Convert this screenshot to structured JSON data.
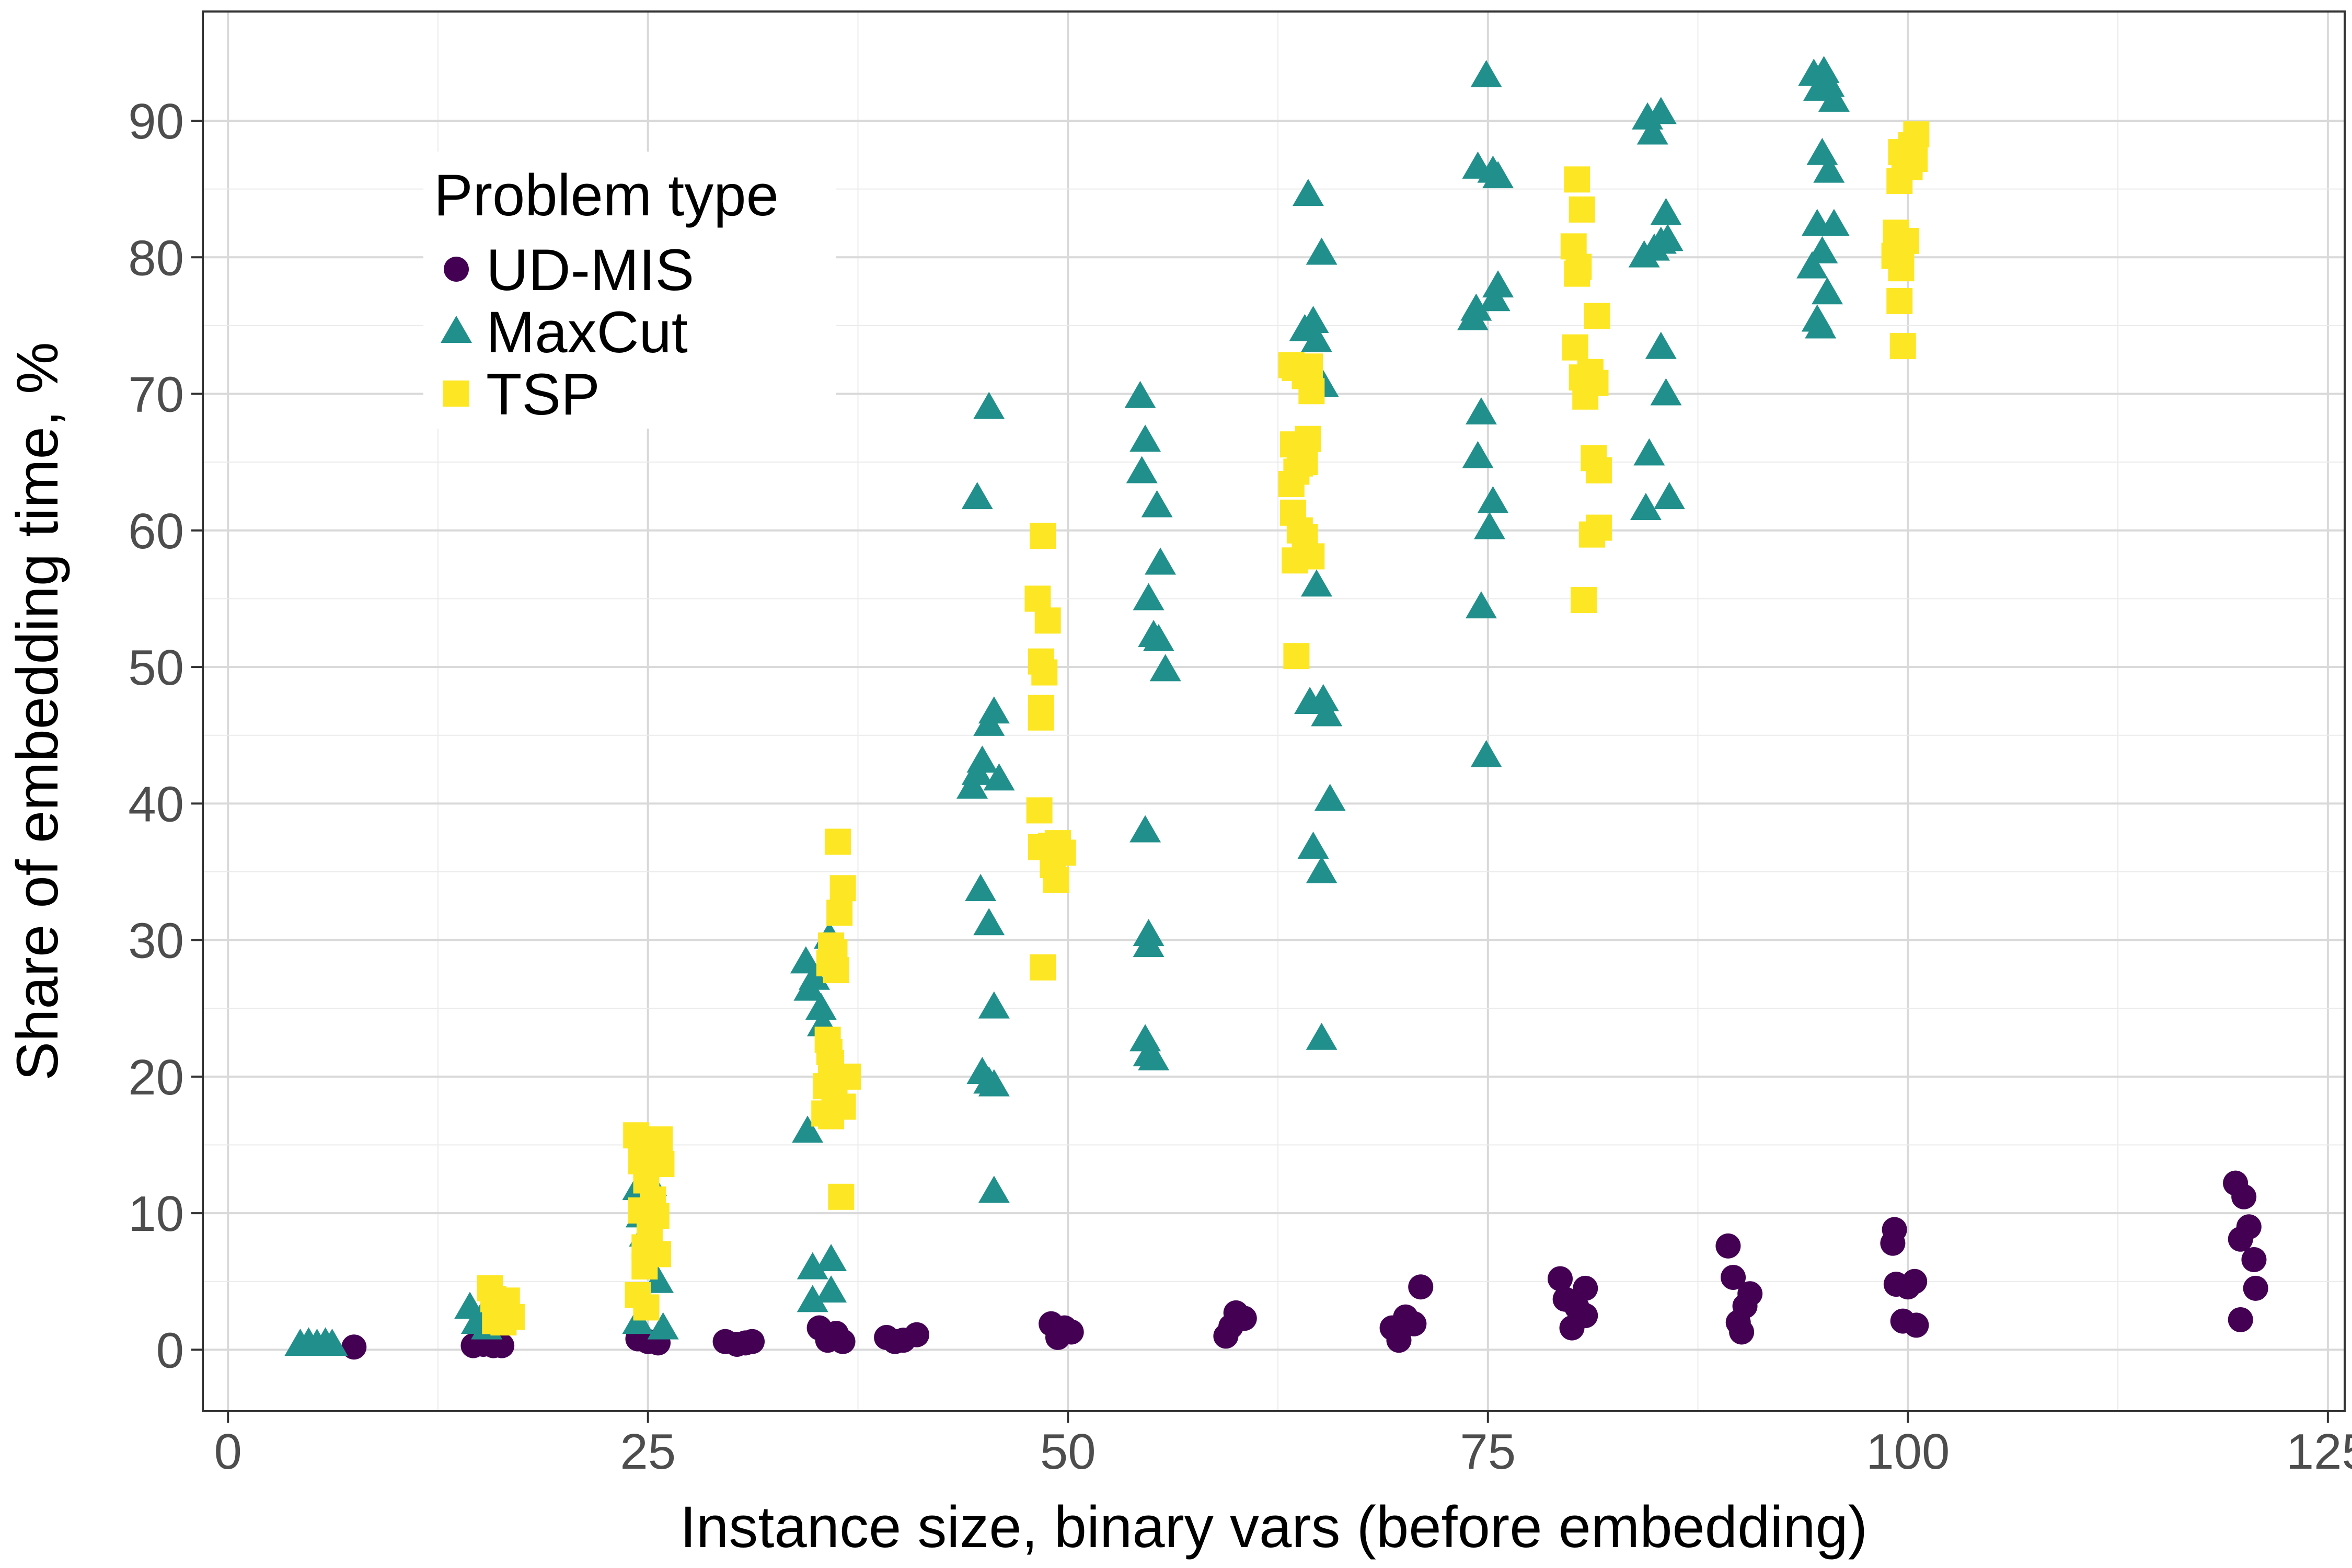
{
  "chart_data": {
    "type": "scatter",
    "xlabel": "Instance size, binary vars (before embedding)",
    "ylabel": "Share of embedding time, %",
    "xlim": [
      -1.5,
      126
    ],
    "ylim": [
      -4.5,
      98
    ],
    "x_ticks": [
      "0",
      "25",
      "50",
      "75",
      "100",
      "125"
    ],
    "x_tick_values": [
      0,
      25,
      50,
      75,
      100,
      125
    ],
    "y_ticks": [
      "0",
      "10",
      "20",
      "30",
      "40",
      "50",
      "60",
      "70",
      "80",
      "90"
    ],
    "y_tick_values": [
      0,
      10,
      20,
      30,
      40,
      50,
      60,
      70,
      80,
      90
    ],
    "grid": true,
    "legend": {
      "title": "Problem type",
      "placement": "top-left inside"
    },
    "series": [
      {
        "name": "UD-MIS",
        "shape": "circle",
        "color": "#440154",
        "points": [
          [
            7.5,
            0.2
          ],
          [
            14.6,
            0.3
          ],
          [
            15.2,
            0.4
          ],
          [
            15.8,
            0.3
          ],
          [
            16.3,
            0.3
          ],
          [
            24.4,
            0.8
          ],
          [
            25.0,
            0.6
          ],
          [
            25.6,
            0.5
          ],
          [
            29.6,
            0.6
          ],
          [
            30.3,
            0.4
          ],
          [
            30.8,
            0.5
          ],
          [
            31.2,
            0.6
          ],
          [
            35.2,
            1.6
          ],
          [
            35.7,
            0.7
          ],
          [
            36.2,
            1.2
          ],
          [
            36.6,
            0.6
          ],
          [
            39.2,
            0.9
          ],
          [
            39.7,
            0.6
          ],
          [
            40.2,
            0.7
          ],
          [
            41.0,
            1.1
          ],
          [
            49.0,
            1.9
          ],
          [
            49.4,
            0.9
          ],
          [
            49.8,
            1.6
          ],
          [
            50.2,
            1.3
          ],
          [
            59.4,
            1.0
          ],
          [
            59.7,
            1.7
          ],
          [
            60.0,
            2.7
          ],
          [
            60.5,
            2.3
          ],
          [
            69.3,
            1.6
          ],
          [
            69.7,
            0.7
          ],
          [
            70.1,
            2.4
          ],
          [
            70.6,
            1.9
          ],
          [
            71.0,
            4.6
          ],
          [
            79.3,
            5.2
          ],
          [
            79.6,
            3.7
          ],
          [
            80.0,
            1.6
          ],
          [
            80.3,
            3.1
          ],
          [
            80.8,
            4.5
          ],
          [
            80.8,
            2.5
          ],
          [
            89.3,
            7.6
          ],
          [
            89.6,
            5.3
          ],
          [
            89.9,
            2.0
          ],
          [
            90.3,
            3.2
          ],
          [
            90.6,
            4.1
          ],
          [
            90.1,
            1.3
          ],
          [
            99.2,
            8.8
          ],
          [
            99.3,
            4.8
          ],
          [
            99.7,
            2.1
          ],
          [
            100.0,
            4.6
          ],
          [
            100.4,
            5.0
          ],
          [
            99.1,
            7.8
          ],
          [
            100.5,
            1.8
          ],
          [
            119.5,
            12.2
          ],
          [
            119.8,
            8.1
          ],
          [
            120.0,
            11.2
          ],
          [
            120.3,
            9.0
          ],
          [
            120.6,
            6.6
          ],
          [
            120.7,
            4.5
          ],
          [
            119.8,
            2.2
          ]
        ]
      },
      {
        "name": "MaxCut",
        "shape": "triangle",
        "color": "#21908C",
        "points": [
          [
            4.3,
            0.4
          ],
          [
            4.8,
            0.5
          ],
          [
            5.3,
            0.4
          ],
          [
            5.8,
            0.5
          ],
          [
            6.2,
            0.4
          ],
          [
            14.4,
            3.1
          ],
          [
            14.8,
            2.0
          ],
          [
            15.1,
            2.4
          ],
          [
            15.4,
            1.6
          ],
          [
            24.4,
            11.8
          ],
          [
            24.6,
            9.8
          ],
          [
            24.8,
            8.4
          ],
          [
            25.2,
            12.1
          ],
          [
            25.6,
            5.0
          ],
          [
            25.9,
            1.6
          ],
          [
            24.4,
            2.0
          ],
          [
            34.4,
            28.4
          ],
          [
            34.6,
            26.4
          ],
          [
            34.9,
            27.2
          ],
          [
            35.3,
            25.0
          ],
          [
            35.4,
            23.8
          ],
          [
            35.8,
            30.2
          ],
          [
            34.5,
            16.0
          ],
          [
            34.8,
            6.0
          ],
          [
            35.9,
            6.6
          ],
          [
            35.9,
            4.3
          ],
          [
            34.8,
            3.6
          ],
          [
            44.3,
            41.2
          ],
          [
            44.6,
            42.2
          ],
          [
            44.9,
            43.1
          ],
          [
            45.3,
            45.8
          ],
          [
            45.6,
            46.7
          ],
          [
            45.9,
            41.8
          ],
          [
            44.8,
            33.7
          ],
          [
            45.3,
            31.2
          ],
          [
            45.6,
            25.1
          ],
          [
            44.9,
            20.3
          ],
          [
            45.3,
            19.6
          ],
          [
            45.6,
            19.4
          ],
          [
            45.6,
            11.6
          ],
          [
            44.6,
            62.4
          ],
          [
            45.3,
            69.0
          ],
          [
            54.3,
            69.8
          ],
          [
            54.6,
            66.6
          ],
          [
            54.4,
            64.3
          ],
          [
            55.3,
            61.8
          ],
          [
            55.5,
            57.6
          ],
          [
            54.8,
            55.0
          ],
          [
            55.1,
            52.3
          ],
          [
            55.4,
            52.0
          ],
          [
            55.8,
            49.8
          ],
          [
            54.6,
            38.0
          ],
          [
            54.8,
            30.4
          ],
          [
            54.8,
            29.6
          ],
          [
            54.6,
            22.7
          ],
          [
            54.8,
            21.6
          ],
          [
            55.1,
            21.3
          ],
          [
            64.3,
            84.6
          ],
          [
            64.6,
            75.3
          ],
          [
            65.1,
            80.3
          ],
          [
            64.8,
            73.9
          ],
          [
            65.2,
            70.6
          ],
          [
            64.8,
            56.0
          ],
          [
            64.4,
            47.4
          ],
          [
            65.2,
            47.6
          ],
          [
            65.4,
            46.5
          ],
          [
            65.6,
            40.3
          ],
          [
            64.6,
            36.8
          ],
          [
            65.1,
            35.0
          ],
          [
            65.1,
            22.8
          ],
          [
            64.1,
            74.7
          ],
          [
            74.4,
            86.6
          ],
          [
            74.9,
            93.3
          ],
          [
            75.3,
            86.3
          ],
          [
            75.6,
            85.9
          ],
          [
            74.3,
            76.2
          ],
          [
            74.1,
            75.5
          ],
          [
            75.6,
            77.9
          ],
          [
            75.4,
            76.9
          ],
          [
            74.6,
            68.6
          ],
          [
            74.4,
            65.4
          ],
          [
            75.3,
            62.1
          ],
          [
            75.1,
            60.2
          ],
          [
            74.6,
            54.4
          ],
          [
            74.9,
            43.5
          ],
          [
            84.5,
            90.2
          ],
          [
            84.8,
            89.1
          ],
          [
            85.3,
            90.6
          ],
          [
            84.9,
            80.6
          ],
          [
            85.3,
            81.1
          ],
          [
            85.6,
            83.2
          ],
          [
            85.7,
            81.3
          ],
          [
            84.3,
            80.1
          ],
          [
            85.3,
            73.4
          ],
          [
            85.6,
            70.0
          ],
          [
            84.6,
            65.6
          ],
          [
            85.8,
            62.4
          ],
          [
            84.4,
            61.6
          ],
          [
            94.4,
            93.4
          ],
          [
            94.7,
            92.3
          ],
          [
            95.0,
            93.6
          ],
          [
            95.3,
            92.6
          ],
          [
            95.6,
            91.5
          ],
          [
            94.9,
            87.6
          ],
          [
            95.3,
            86.3
          ],
          [
            94.6,
            82.4
          ],
          [
            95.6,
            82.4
          ],
          [
            94.9,
            80.4
          ],
          [
            94.3,
            79.3
          ],
          [
            95.2,
            77.4
          ],
          [
            94.6,
            75.4
          ],
          [
            94.8,
            74.9
          ]
        ]
      },
      {
        "name": "TSP",
        "shape": "square",
        "color": "#FDE725",
        "points": [
          [
            15.6,
            4.5
          ],
          [
            15.8,
            3.7
          ],
          [
            16.1,
            3.0
          ],
          [
            16.3,
            2.8
          ],
          [
            16.6,
            3.6
          ],
          [
            16.9,
            2.4
          ],
          [
            15.9,
            2.1
          ],
          [
            16.4,
            2.0
          ],
          [
            24.3,
            15.7
          ],
          [
            24.6,
            13.8
          ],
          [
            24.9,
            12.4
          ],
          [
            25.3,
            11.0
          ],
          [
            25.5,
            9.8
          ],
          [
            25.1,
            8.6
          ],
          [
            24.8,
            7.5
          ],
          [
            25.6,
            7.0
          ],
          [
            24.4,
            4.0
          ],
          [
            24.9,
            3.1
          ],
          [
            25.7,
            15.4
          ],
          [
            25.8,
            13.6
          ],
          [
            24.6,
            10.2
          ],
          [
            24.8,
            6.1
          ],
          [
            36.3,
            37.2
          ],
          [
            36.6,
            33.8
          ],
          [
            36.4,
            32.0
          ],
          [
            35.9,
            29.6
          ],
          [
            36.1,
            29.1
          ],
          [
            35.8,
            28.3
          ],
          [
            36.2,
            27.8
          ],
          [
            35.7,
            22.7
          ],
          [
            35.8,
            21.8
          ],
          [
            35.9,
            21.0
          ],
          [
            36.9,
            20.0
          ],
          [
            35.6,
            19.3
          ],
          [
            36.1,
            18.6
          ],
          [
            36.6,
            17.8
          ],
          [
            35.5,
            17.3
          ],
          [
            35.9,
            17.1
          ],
          [
            36.5,
            11.2
          ],
          [
            48.5,
            59.6
          ],
          [
            48.2,
            55.0
          ],
          [
            48.8,
            53.4
          ],
          [
            48.4,
            50.4
          ],
          [
            48.6,
            49.6
          ],
          [
            48.4,
            47.0
          ],
          [
            48.4,
            46.3
          ],
          [
            48.3,
            39.5
          ],
          [
            48.4,
            36.8
          ],
          [
            49.0,
            36.9
          ],
          [
            49.4,
            37.1
          ],
          [
            49.7,
            36.4
          ],
          [
            49.1,
            35.5
          ],
          [
            49.3,
            34.4
          ],
          [
            48.5,
            28.0
          ],
          [
            63.3,
            72.1
          ],
          [
            63.5,
            71.9
          ],
          [
            64.1,
            71.3
          ],
          [
            64.4,
            72.0
          ],
          [
            64.5,
            70.2
          ],
          [
            63.4,
            66.3
          ],
          [
            63.8,
            64.9
          ],
          [
            64.1,
            65.0
          ],
          [
            63.6,
            64.3
          ],
          [
            64.3,
            66.7
          ],
          [
            63.3,
            63.4
          ],
          [
            63.4,
            61.3
          ],
          [
            63.8,
            60.0
          ],
          [
            64.1,
            59.5
          ],
          [
            64.5,
            58.1
          ],
          [
            63.5,
            57.8
          ],
          [
            63.6,
            50.8
          ],
          [
            80.3,
            85.7
          ],
          [
            80.6,
            83.5
          ],
          [
            80.1,
            80.8
          ],
          [
            80.4,
            79.3
          ],
          [
            80.3,
            78.8
          ],
          [
            81.5,
            75.7
          ],
          [
            80.2,
            73.4
          ],
          [
            80.6,
            71.2
          ],
          [
            81.1,
            71.6
          ],
          [
            81.4,
            70.8
          ],
          [
            80.8,
            69.8
          ],
          [
            81.3,
            65.3
          ],
          [
            81.6,
            64.4
          ],
          [
            81.6,
            60.2
          ],
          [
            81.2,
            59.7
          ],
          [
            80.7,
            54.9
          ],
          [
            100.5,
            89.0
          ],
          [
            100.2,
            88.2
          ],
          [
            99.6,
            87.7
          ],
          [
            99.8,
            87.5
          ],
          [
            100.4,
            87.2
          ],
          [
            100.1,
            86.6
          ],
          [
            99.5,
            85.6
          ],
          [
            99.3,
            81.8
          ],
          [
            99.9,
            81.2
          ],
          [
            99.6,
            80.4
          ],
          [
            99.2,
            80.1
          ],
          [
            99.6,
            79.2
          ],
          [
            99.5,
            76.8
          ],
          [
            99.7,
            73.5
          ]
        ]
      }
    ]
  }
}
